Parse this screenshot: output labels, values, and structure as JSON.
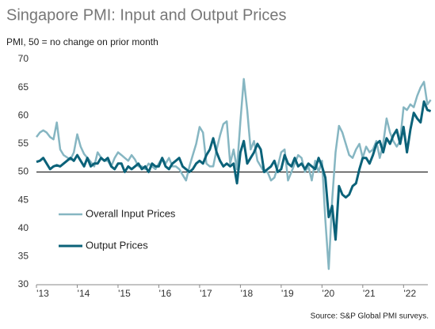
{
  "chart_data": {
    "type": "line",
    "title": "Singapore PMI: Input and Output Prices",
    "subtitle": "PMI, 50 = no change on prior month",
    "source": "Source: S&P Global PMI surveys.",
    "categories": [
      "'13",
      null,
      null,
      null,
      null,
      null,
      null,
      null,
      null,
      null,
      null,
      null,
      "'14",
      null,
      null,
      null,
      null,
      null,
      null,
      null,
      null,
      null,
      null,
      null,
      "'15",
      null,
      null,
      null,
      null,
      null,
      null,
      null,
      null,
      null,
      null,
      null,
      "'16",
      null,
      null,
      null,
      null,
      null,
      null,
      null,
      null,
      null,
      null,
      null,
      "'17",
      null,
      null,
      null,
      null,
      null,
      null,
      null,
      null,
      null,
      null,
      null,
      "'18",
      null,
      null,
      null,
      null,
      null,
      null,
      null,
      null,
      null,
      null,
      null,
      "'19",
      null,
      null,
      null,
      null,
      null,
      null,
      null,
      null,
      null,
      null,
      null,
      "'20",
      null,
      null,
      null,
      null,
      null,
      null,
      null,
      null,
      null,
      null,
      null,
      "'21",
      null,
      null,
      null,
      null,
      null,
      null,
      null,
      null,
      null,
      null,
      null,
      "'22",
      null,
      null,
      null,
      null,
      null,
      null,
      null,
      null
    ],
    "series": [
      {
        "name": "Overall Input Prices",
        "color": "#86b6c2",
        "values": [
          56.2,
          57.0,
          57.4,
          57.0,
          56.2,
          55.8,
          58.8,
          54.0,
          53.0,
          52.6,
          52.2,
          53.5,
          56.7,
          54.5,
          53.2,
          52.5,
          51.8,
          51.0,
          53.5,
          52.6,
          52.0,
          52.0,
          51.0,
          52.5,
          53.5,
          53.0,
          52.5,
          52.0,
          53.0,
          52.2,
          51.0,
          51.0,
          50.5,
          51.5,
          51.0,
          50.5,
          51.5,
          52.5,
          51.5,
          52.5,
          51.0,
          51.0,
          50.5,
          49.5,
          48.5,
          51.0,
          53.0,
          55.0,
          58.0,
          57.0,
          51.5,
          51.0,
          51.0,
          54.0,
          56.5,
          58.5,
          59.0,
          51.5,
          54.0,
          50.5,
          59.0,
          66.5,
          61.0,
          54.0,
          55.5,
          52.0,
          51.0,
          50.0,
          50.0,
          48.5,
          49.0,
          51.0,
          53.5,
          54.0,
          48.5,
          50.0,
          51.5,
          53.0,
          52.5,
          50.0,
          51.0,
          48.5,
          52.0,
          50.0,
          52.0,
          41.5,
          32.8,
          45.0,
          53.5,
          58.2,
          57.0,
          55.0,
          53.0,
          52.5,
          54.0,
          55.0,
          52.5,
          54.5,
          53.5,
          54.0,
          55.5,
          52.5,
          55.0,
          59.5,
          57.0,
          55.5,
          54.5,
          55.5,
          61.5,
          61.0,
          62.0,
          61.5,
          63.5,
          65.0,
          66.0,
          62.0,
          62.8
        ]
      },
      {
        "name": "Output Prices",
        "color": "#0b6279",
        "values": [
          51.8,
          52.0,
          52.5,
          51.5,
          50.5,
          51.0,
          51.2,
          51.0,
          51.5,
          52.0,
          52.5,
          52.0,
          53.0,
          52.0,
          51.0,
          52.5,
          51.0,
          51.5,
          51.5,
          52.5,
          52.0,
          52.5,
          51.0,
          50.5,
          51.5,
          51.5,
          50.0,
          51.0,
          50.5,
          51.0,
          51.5,
          50.5,
          51.0,
          50.0,
          51.5,
          51.0,
          51.0,
          52.5,
          51.0,
          50.5,
          51.5,
          52.0,
          52.5,
          51.0,
          50.5,
          50.0,
          50.5,
          51.5,
          52.0,
          51.5,
          53.0,
          54.0,
          56.0,
          53.5,
          52.0,
          51.0,
          51.5,
          51.0,
          51.5,
          48.0,
          53.5,
          55.5,
          51.5,
          52.5,
          53.5,
          55.0,
          54.0,
          50.0,
          50.5,
          51.0,
          52.0,
          50.0,
          50.5,
          53.0,
          51.5,
          51.0,
          52.5,
          51.0,
          51.5,
          50.5,
          51.5,
          51.0,
          50.5,
          52.5,
          51.0,
          49.0,
          42.0,
          44.0,
          38.0,
          47.5,
          46.0,
          45.5,
          46.0,
          47.5,
          48.0,
          50.5,
          52.5,
          52.5,
          51.5,
          53.0,
          55.0,
          55.5,
          53.5,
          56.0,
          55.0,
          56.5,
          57.5,
          55.0,
          58.0,
          53.5,
          57.5,
          60.5,
          59.5,
          58.8,
          62.5,
          61.0,
          60.8
        ]
      }
    ],
    "reference_line": 50,
    "ylim": [
      30,
      70
    ],
    "yticks": [
      30,
      35,
      40,
      45,
      50,
      55,
      60,
      65,
      70
    ]
  }
}
